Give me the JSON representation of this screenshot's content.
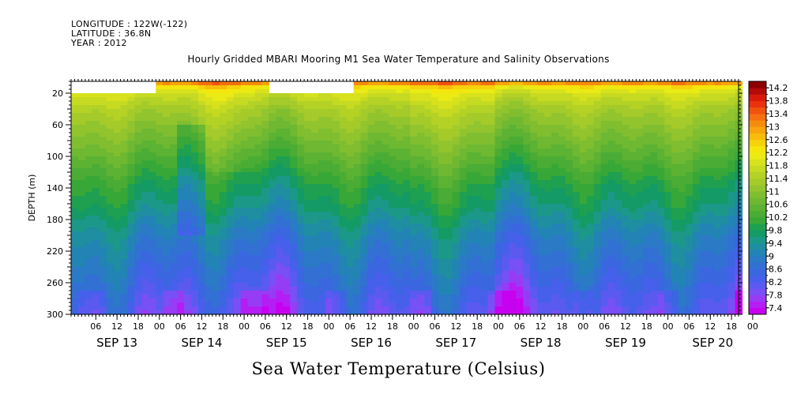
{
  "header": {
    "longitude": "LONGITUDE : 122W(-122)",
    "latitude": "LATITUDE : 36.8N",
    "year": "YEAR : 2012"
  },
  "title": "Hourly Gridded MBARI Mooring M1 Sea Water Temperature and Salinity Observations",
  "colorbar_title": "Sea Water Temperature (Celsius)",
  "chart_data": {
    "type": "heatmap",
    "title": "Hourly Gridded MBARI Mooring M1 Sea Water Temperature and Salinity Observations",
    "xlabel": "",
    "ylabel": "DEPTH (m)",
    "colorbar_label": "Sea Water Temperature (Celsius)",
    "y_reversed": true,
    "ylim": [
      300,
      5
    ],
    "y_ticks": [
      20,
      60,
      100,
      140,
      180,
      220,
      260,
      300
    ],
    "y_tick_labels": [
      "20",
      "60",
      "100",
      "140",
      "180",
      "220",
      "260",
      "300"
    ],
    "xlim": [
      "2012-09-12T23:00",
      "2012-09-20T20:00"
    ],
    "hour_ticks": [
      "06",
      "12",
      "18",
      "00",
      "06",
      "12",
      "18",
      "00",
      "06",
      "12",
      "18",
      "00",
      "06",
      "12",
      "18",
      "00",
      "06",
      "12",
      "18",
      "00",
      "06",
      "12",
      "18",
      "00",
      "06",
      "12",
      "18",
      "00",
      "06",
      "12",
      "18",
      "00"
    ],
    "day_labels": [
      "SEP 13",
      "SEP 14",
      "SEP 15",
      "SEP 16",
      "SEP 17",
      "SEP 18",
      "SEP 19",
      "SEP 20"
    ],
    "colorbar_levels": [
      7.4,
      7.6,
      7.8,
      8.0,
      8.2,
      8.4,
      8.6,
      8.8,
      9.0,
      9.2,
      9.4,
      9.6,
      9.8,
      10.0,
      10.2,
      10.4,
      10.6,
      10.8,
      11.0,
      11.2,
      11.4,
      11.6,
      11.8,
      12.0,
      12.2,
      12.4,
      12.6,
      12.8,
      13.0,
      13.2,
      13.4,
      13.6,
      13.8,
      14.0,
      14.2
    ],
    "colorbar_tick_labels": [
      "14.2",
      "13.8",
      "13.4",
      "13",
      "12.6",
      "12.2",
      "11.8",
      "11.4",
      "11",
      "10.6",
      "10.2",
      "9.8",
      "9.4",
      "9",
      "8.6",
      "8.2",
      "7.8",
      "7.4"
    ],
    "colors": [
      "#c800f0",
      "#b41ef5",
      "#963cf5",
      "#7850f5",
      "#5a5af0",
      "#4660eb",
      "#3a66e0",
      "#3270d4",
      "#2a7ac6",
      "#2284b4",
      "#1e8ea0",
      "#1c9888",
      "#149a64",
      "#1ea050",
      "#37a838",
      "#4aac34",
      "#5cb232",
      "#6eb832",
      "#80be30",
      "#92c42e",
      "#a4cb2a",
      "#b4d226",
      "#c6da22",
      "#d8e21c",
      "#eaea14",
      "#f4e60c",
      "#f6d20a",
      "#f8bc0a",
      "#f8a40c",
      "#f68c0e",
      "#f47010",
      "#f05210",
      "#e8320e",
      "#d81a0c",
      "#b40a0a",
      "#8c0000"
    ],
    "data_gaps": [
      {
        "from": "2012-09-12T23:00",
        "to": "2012-09-13T23:00",
        "depth_above_m": 20
      },
      {
        "from": "2012-09-15T06:00",
        "to": "2012-09-16T06:00",
        "depth_above_m": 20
      }
    ],
    "record_start": "2012-09-12T23:00",
    "top_depth_m": 5,
    "description_profile_c": {
      "depths_m": [
        5,
        10,
        20,
        40,
        60,
        80,
        100,
        120,
        140,
        160,
        180,
        200,
        220,
        240,
        260,
        280,
        300
      ],
      "temperature_c": [
        13.6,
        12.4,
        11.8,
        11.3,
        11.0,
        10.7,
        10.4,
        10.1,
        9.8,
        9.6,
        9.3,
        9.0,
        8.8,
        8.6,
        8.4,
        8.2,
        8.0
      ]
    }
  }
}
